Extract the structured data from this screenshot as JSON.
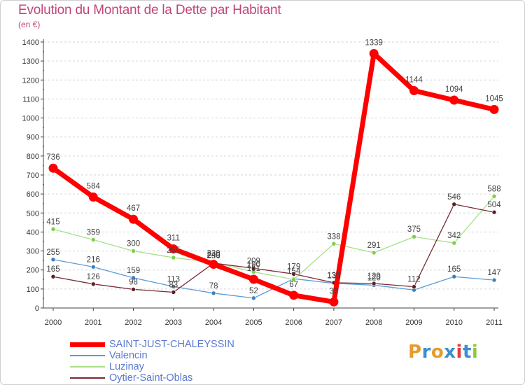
{
  "title": "Evolution du Montant de la Dette par Habitant",
  "subtitle": "(en €)",
  "logo": {
    "text": "Proxiti",
    "letters": [
      "P",
      "r",
      "o",
      "x",
      "i",
      "t",
      "i"
    ],
    "colors": [
      "#e89b2a",
      "#3a8fd1",
      "#e89b2a",
      "#3a8fd1",
      "#e23b3b",
      "#3a8fd1",
      "#8fc73e"
    ]
  },
  "chart_data": {
    "type": "line",
    "x": [
      "2000",
      "2001",
      "2002",
      "2003",
      "2004",
      "2005",
      "2006",
      "2007",
      "2008",
      "2009",
      "2010",
      "2011"
    ],
    "ylim": [
      0,
      1400
    ],
    "yticks": [
      0,
      100,
      200,
      300,
      400,
      500,
      600,
      700,
      800,
      900,
      1000,
      1100,
      1200,
      1300,
      1400
    ],
    "grid": "horizontal-dashed",
    "legend_position": "bottom-left",
    "series": [
      {
        "name": "Valencin",
        "color": "#5b9bd5",
        "marker": "#3f7fc0",
        "width": 1.3,
        "values": [
          255,
          216,
          159,
          113,
          78,
          52,
          154,
          130,
          120,
          95,
          165,
          147
        ],
        "labels": [
          "255",
          "216",
          "159",
          "113",
          "78",
          "52",
          "154",
          "130",
          "120",
          "",
          "165",
          "147"
        ]
      },
      {
        "name": "Luzinay",
        "color": "#a7e08a",
        "marker": "#7ccf4e",
        "width": 1.3,
        "values": [
          415,
          359,
          300,
          265,
          240,
          190,
          150,
          338,
          291,
          375,
          342,
          588
        ],
        "labels": [
          "415",
          "359",
          "300",
          "265",
          "240",
          "190",
          "",
          "338",
          "291",
          "375",
          "342",
          "588"
        ]
      },
      {
        "name": "Oytier-Saint-Oblas",
        "color": "#7a2a35",
        "marker": "#5e1f28",
        "width": 1.3,
        "values": [
          165,
          126,
          98,
          83,
          236,
          209,
          179,
          133,
          129,
          112,
          546,
          504
        ],
        "labels": [
          "165",
          "126",
          "98",
          "83",
          "236",
          "209",
          "179",
          "133",
          "129",
          "112",
          "546",
          "504"
        ]
      },
      {
        "name": "SAINT-JUST-CHALEYSSIN",
        "color": "#ff0000",
        "marker": "#ff0000",
        "width": 7,
        "values": [
          736,
          584,
          467,
          311,
          230,
          151,
          67,
          32,
          1339,
          1144,
          1094,
          1045
        ],
        "labels": [
          "736",
          "584",
          "467",
          "311",
          "230",
          "151",
          "67",
          "32",
          "1339",
          "1144",
          "1094",
          "1045"
        ]
      }
    ]
  },
  "legend": {
    "items": [
      {
        "label": "SAINT-JUST-CHALEYSSIN",
        "color": "#ff0000",
        "width": 7
      },
      {
        "label": "Valencin",
        "color": "#5b9bd5",
        "width": 2
      },
      {
        "label": "Luzinay",
        "color": "#a7e08a",
        "width": 2
      },
      {
        "label": "Oytier-Saint-Oblas",
        "color": "#7a2a35",
        "width": 2
      }
    ]
  }
}
